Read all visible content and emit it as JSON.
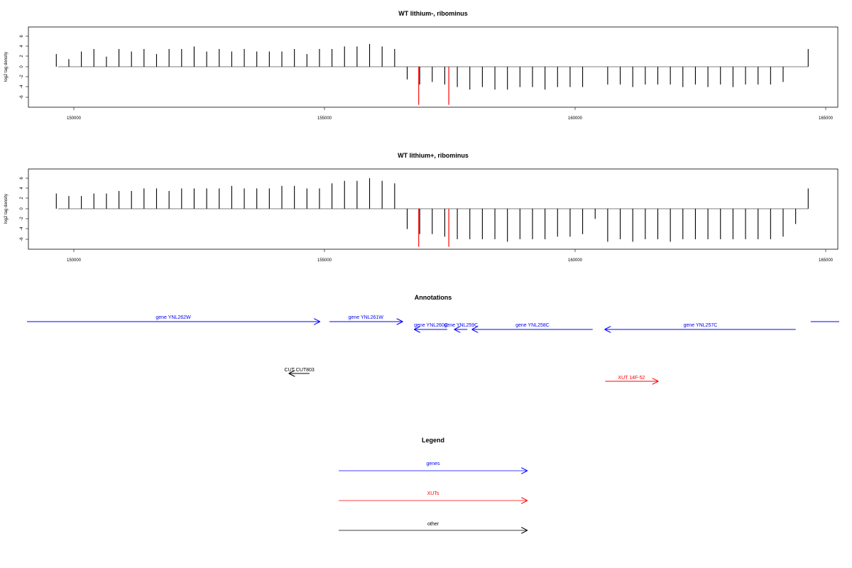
{
  "panels": [
    {
      "id": "p1",
      "title": "WT lithium-, ribominus",
      "ylabel": "log2 tag density",
      "yticks": [
        "6",
        "4",
        "2",
        "0",
        "-2",
        "-4",
        "-6"
      ],
      "xticks": [
        "150000",
        "155000",
        "160000",
        "165000"
      ]
    },
    {
      "id": "p2",
      "title": "WT lithium+, ribominus",
      "ylabel": "log2 tag density",
      "yticks": [
        "6",
        "4",
        "2",
        "0",
        "-2",
        "-4",
        "-6"
      ],
      "xticks": [
        "150000",
        "155000",
        "160000",
        "165000"
      ]
    }
  ],
  "annotations": {
    "title": "Annotations",
    "items": [
      {
        "label": "gene YNL262W",
        "start": 149000,
        "end": 154900,
        "strand": "+",
        "color": "#0000ff"
      },
      {
        "label": "gene YNL261W",
        "start": 155100,
        "end": 156550,
        "strand": "+",
        "color": "#0000ff"
      },
      {
        "label": "gene YNL260C",
        "start": 156800,
        "end": 157450,
        "strand": "-",
        "color": "#0000ff"
      },
      {
        "label": "gene YNL259C",
        "start": 157600,
        "end": 157850,
        "strand": "-",
        "color": "#0000ff"
      },
      {
        "label": "gene YNL258C",
        "start": 157950,
        "end": 160350,
        "strand": "-",
        "color": "#0000ff"
      },
      {
        "label": "gene YNL257C",
        "start": 160600,
        "end": 164400,
        "strand": "-",
        "color": "#0000ff"
      },
      {
        "label": "",
        "start": 164700,
        "end": 165500,
        "strand": "+",
        "color": "#0000ff"
      },
      {
        "label": "CUT CUT803",
        "start": 154300,
        "end": 154700,
        "strand": "-",
        "color": "#000000"
      },
      {
        "label": "XUT 14F-52",
        "start": 160600,
        "end": 161650,
        "strand": "+",
        "color": "#ff0000"
      }
    ]
  },
  "legend": {
    "title": "Legend",
    "items": [
      {
        "label": "genes",
        "color": "#0000ff"
      },
      {
        "label": "XUTs",
        "color": "#ff0000"
      },
      {
        "label": "other",
        "color": "#000000"
      }
    ]
  },
  "chart_data": [
    {
      "type": "bar",
      "title": "WT lithium-, ribominus",
      "xlabel": "",
      "ylabel": "log2 tag density",
      "xlim": [
        149000,
        165300
      ],
      "ylim": [
        -8,
        8
      ],
      "grid": false,
      "series": [
        {
          "color": "#000000",
          "x": [
            149650,
            149900,
            150150,
            150400,
            150650,
            150900,
            151150,
            151400,
            151650,
            151900,
            152150,
            152400,
            152650,
            152900,
            153150,
            153400,
            153650,
            153900,
            154150,
            154400,
            154650,
            154900,
            155150,
            155400,
            155650,
            155900,
            156150,
            156400,
            156650,
            156900,
            157150,
            157400,
            157650,
            157900,
            158150,
            158400,
            158650,
            158900,
            159150,
            159400,
            159650,
            159900,
            160150,
            160400,
            160650,
            160900,
            161150,
            161400,
            161650,
            161900,
            162150,
            162400,
            162650,
            162900,
            163150,
            163400,
            163650,
            163900,
            164150,
            164400,
            164650
          ],
          "values": [
            2.5,
            1.5,
            3.0,
            3.5,
            2.0,
            3.5,
            3.0,
            3.5,
            2.5,
            3.5,
            3.5,
            4.0,
            3.0,
            3.5,
            3.0,
            3.5,
            3.0,
            3.0,
            3.0,
            3.5,
            2.5,
            3.5,
            3.5,
            4.0,
            4.0,
            4.5,
            4.0,
            3.5,
            -2.5,
            -3.5,
            -3.0,
            -3.5,
            -4.0,
            -4.5,
            -4.0,
            -4.5,
            -4.5,
            -4.0,
            -4.0,
            -4.5,
            -4.0,
            -4.0,
            -4.0,
            0,
            -3.5,
            -3.5,
            -4.0,
            -3.5,
            -3.5,
            -3.5,
            -4.0,
            -3.5,
            -4.0,
            -3.5,
            -4.0,
            -3.5,
            -3.5,
            -3.5,
            -3.0,
            0,
            3.5
          ]
        },
        {
          "color": "#ff0000",
          "x": [
            156880,
            157480
          ],
          "values": [
            -7.5,
            -7.5
          ]
        }
      ]
    },
    {
      "type": "bar",
      "title": "WT lithium+, ribominus",
      "xlabel": "",
      "ylabel": "log2 tag density",
      "xlim": [
        149000,
        165300
      ],
      "ylim": [
        -8,
        8
      ],
      "grid": false,
      "series": [
        {
          "color": "#000000",
          "x": [
            149650,
            149900,
            150150,
            150400,
            150650,
            150900,
            151150,
            151400,
            151650,
            151900,
            152150,
            152400,
            152650,
            152900,
            153150,
            153400,
            153650,
            153900,
            154150,
            154400,
            154650,
            154900,
            155150,
            155400,
            155650,
            155900,
            156150,
            156400,
            156650,
            156900,
            157150,
            157400,
            157650,
            157900,
            158150,
            158400,
            158650,
            158900,
            159150,
            159400,
            159650,
            159900,
            160150,
            160400,
            160650,
            160900,
            161150,
            161400,
            161650,
            161900,
            162150,
            162400,
            162650,
            162900,
            163150,
            163400,
            163650,
            163900,
            164150,
            164400,
            164650
          ],
          "values": [
            3.0,
            2.5,
            2.5,
            3.0,
            3.0,
            3.5,
            3.5,
            4.0,
            4.0,
            3.5,
            4.0,
            4.0,
            4.0,
            4.0,
            4.5,
            4.0,
            4.0,
            4.0,
            4.5,
            4.5,
            4.0,
            4.0,
            5.0,
            5.5,
            5.5,
            6.0,
            5.5,
            5.0,
            -4.0,
            -5.0,
            -5.0,
            -5.5,
            -6.0,
            -6.0,
            -6.0,
            -6.0,
            -6.5,
            -6.0,
            -6.0,
            -6.0,
            -5.5,
            -5.5,
            -5.0,
            -2.0,
            -6.5,
            -6.0,
            -6.5,
            -6.0,
            -6.0,
            -6.5,
            -6.0,
            -6.0,
            -6.0,
            -6.0,
            -6.0,
            -6.0,
            -6.0,
            -6.0,
            -5.5,
            -3.0,
            4.0
          ]
        },
        {
          "color": "#ff0000",
          "x": [
            156880,
            157480
          ],
          "values": [
            -7.5,
            -7.5
          ]
        }
      ]
    }
  ]
}
